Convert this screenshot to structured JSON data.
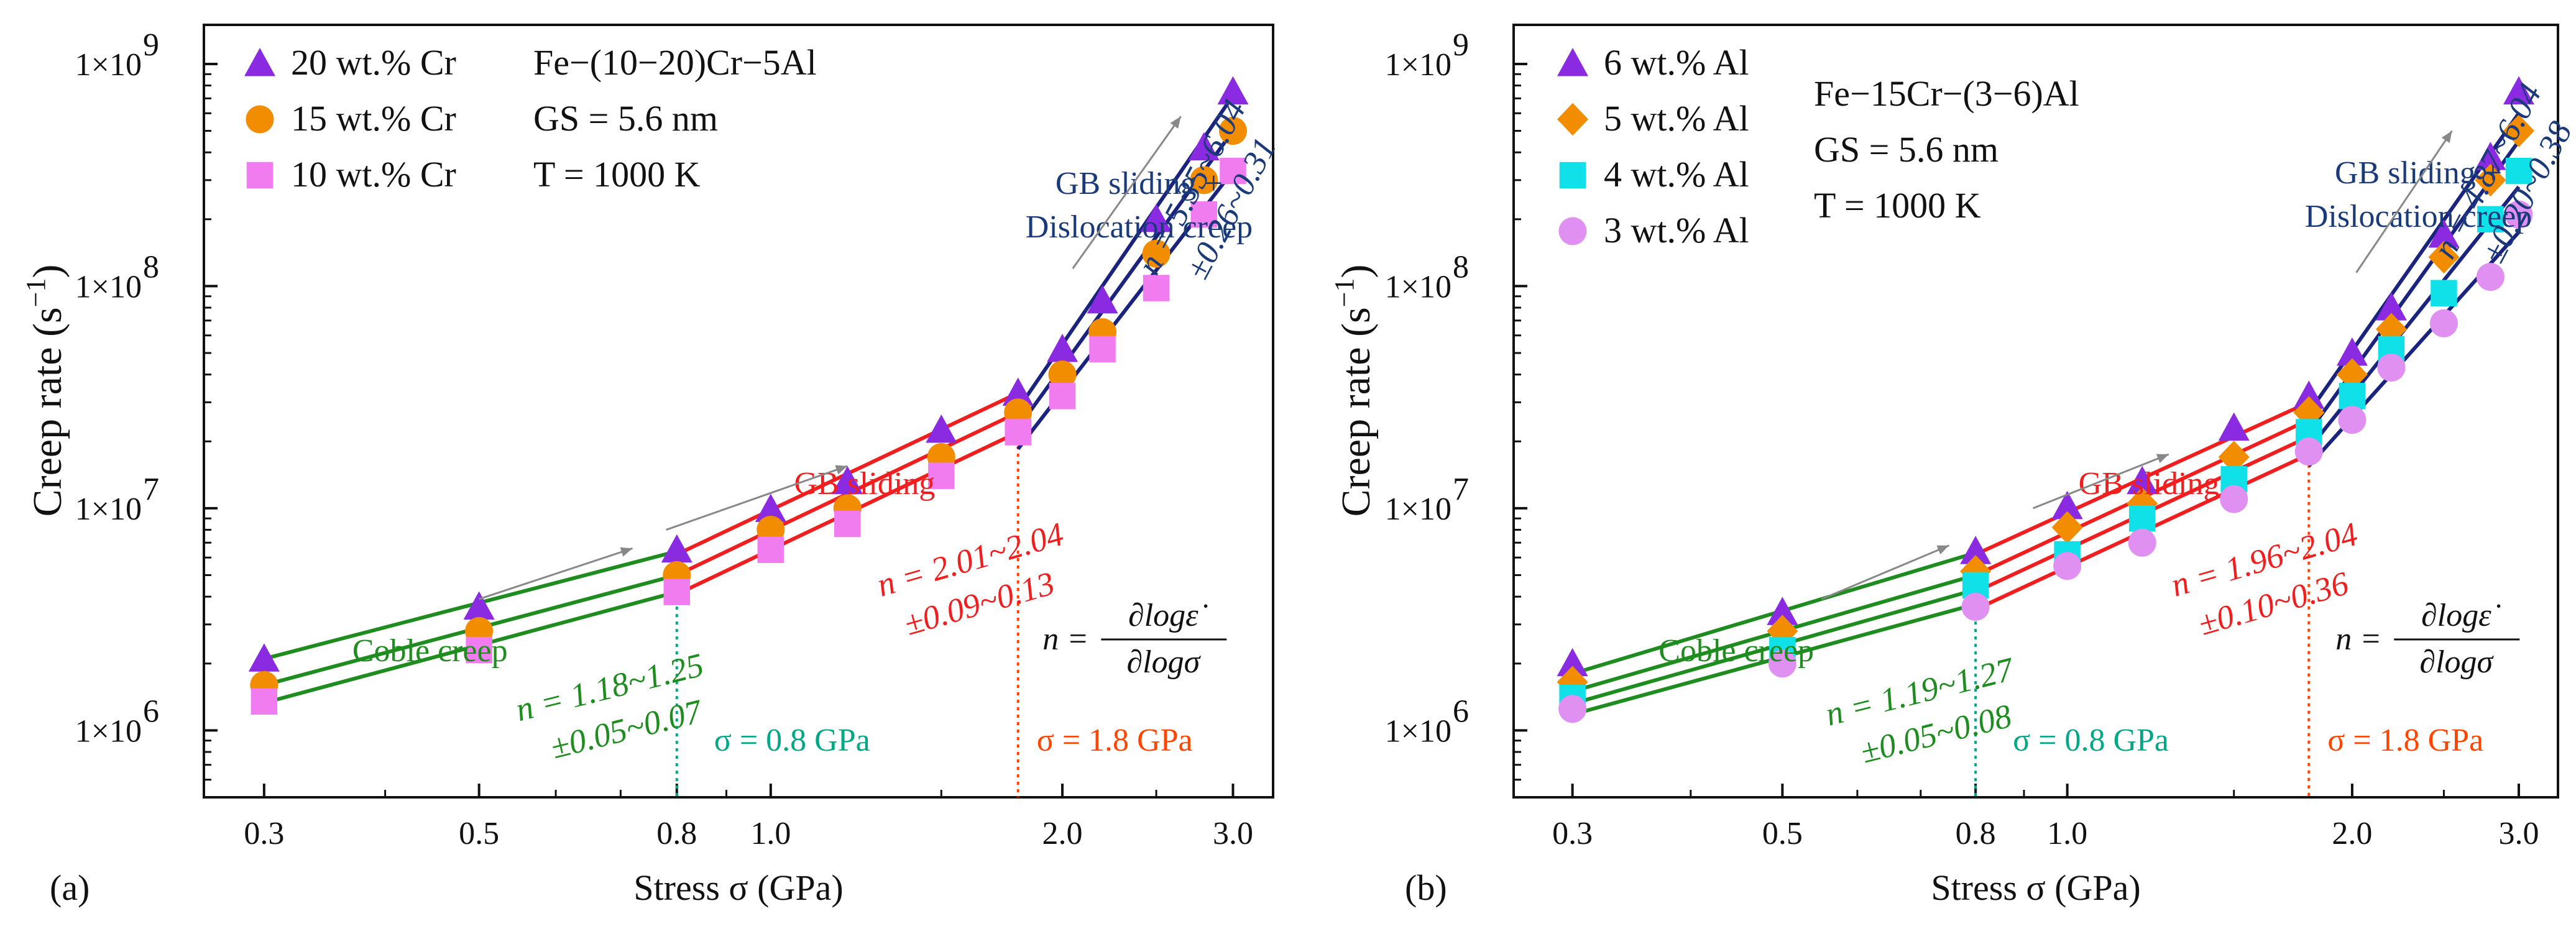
{
  "colors": {
    "green": "#1e8c1e",
    "red": "#f01e1e",
    "navy": "#1a237e",
    "teal": "#00a886",
    "orange_red": "#ff4500",
    "annotation_blue": "#1a3a7a",
    "purple": "#8a2be2",
    "orange": "#f28c00",
    "pink": "#f07cf0",
    "cyan": "#10e0e8",
    "violet": "#e090f0"
  },
  "chart_data": [
    {
      "type": "scatter",
      "panel_label": "(a)",
      "title": "",
      "xlabel": "Stress σ (GPa)",
      "ylabel": "Creep rate (s",
      "ylabel_exp": "−1",
      "ylabel_close": ")",
      "xscale": "log",
      "yscale": "log",
      "xlim": [
        0.26,
        3.3
      ],
      "ylim": [
        500000,
        1500000000
      ],
      "x_ticks": [
        0.3,
        0.5,
        0.8,
        1.0,
        2.0,
        3.0
      ],
      "x_tick_labels": [
        "0.3",
        "0.5",
        "0.8",
        "1.0",
        "2.0",
        "3.0"
      ],
      "y_ticks": [
        1000000,
        10000000,
        100000000,
        1000000000
      ],
      "y_tick_bases": [
        "1×10",
        "1×10",
        "1×10",
        "1×10"
      ],
      "y_tick_exps": [
        "6",
        "7",
        "8",
        "9"
      ],
      "x": [
        0.3,
        0.5,
        0.8,
        1.0,
        1.2,
        1.5,
        1.8,
        2.0,
        2.2,
        2.5,
        2.8,
        3.0
      ],
      "legend_position": "top-left",
      "series": [
        {
          "name": "20 wt.% Cr",
          "marker": "triangle",
          "color": "#8a2be2",
          "values": [
            2100000,
            3600000,
            6500000,
            9900000,
            13200000,
            22500000,
            33000000,
            52000000,
            86000000,
            200000000,
            420000000,
            750000000
          ]
        },
        {
          "name": "15 wt.% Cr",
          "marker": "circle",
          "color": "#f28c00",
          "values": [
            1600000,
            2800000,
            5000000,
            8000000,
            10000000,
            17000000,
            27000000,
            40000000,
            62000000,
            140000000,
            300000000,
            500000000
          ]
        },
        {
          "name": "10 wt.% Cr",
          "marker": "square",
          "color": "#f07cf0",
          "values": [
            1350000,
            2300000,
            4200000,
            6500000,
            8500000,
            14000000,
            22000000,
            32000000,
            52000000,
            98000000,
            210000000,
            330000000
          ]
        }
      ],
      "fits": {
        "coble": {
          "color": "#1e8c1e",
          "x_start": 0.3,
          "x_end": 0.8,
          "start_values": [
            2100000,
            1600000,
            1330000
          ],
          "end_values": [
            6400000,
            5000000,
            4200000
          ]
        },
        "gb": {
          "color": "#f01e1e",
          "x_start": 0.8,
          "x_end": 1.8,
          "start_values": [
            6200000,
            5000000,
            4100000
          ],
          "end_values": [
            33000000,
            27000000,
            22000000
          ]
        },
        "disl": {
          "color": "#1a237e",
          "x_start": 1.8,
          "x_end": 3.0,
          "start_values": [
            28000000,
            23000000,
            18500000
          ],
          "end_values": [
            720000000,
            500000000,
            330000000
          ]
        }
      },
      "info": [
        "Fe−(10−20)Cr−5Al",
        "GS = 5.6 nm",
        "T = 1000 K"
      ],
      "annotations": {
        "coble_label": "Coble creep",
        "gb_label": "GB sliding",
        "disl_label_1": "GB sliding +",
        "disl_label_2": "Dislocation creep",
        "sigma_1": "σ = 0.8 GPa",
        "sigma_2": "σ = 1.8 GPa",
        "n_coble_1": "n = 1.18~1.25",
        "n_coble_2": "±0.05~0.07",
        "n_gb_1": "n = 2.01~2.04",
        "n_gb_2": "±0.09~0.13",
        "n_disl_1": "n = 5.35~6.04",
        "n_disl_2": "±0.26~0.31",
        "formula_lhs": "n =",
        "formula_num": "∂logε̇",
        "formula_den": "∂logσ"
      },
      "vlines": [
        0.8,
        1.8
      ]
    },
    {
      "type": "scatter",
      "panel_label": "(b)",
      "title": "",
      "xlabel": "Stress σ (GPa)",
      "ylabel": "Creep rate (s",
      "ylabel_exp": "−1",
      "ylabel_close": ")",
      "xscale": "log",
      "yscale": "log",
      "xlim": [
        0.26,
        3.3
      ],
      "ylim": [
        500000,
        1500000000
      ],
      "x_ticks": [
        0.3,
        0.5,
        0.8,
        1.0,
        2.0,
        3.0
      ],
      "x_tick_labels": [
        "0.3",
        "0.5",
        "0.8",
        "1.0",
        "2.0",
        "3.0"
      ],
      "y_ticks": [
        1000000,
        10000000,
        100000000,
        1000000000
      ],
      "y_tick_bases": [
        "1×10",
        "1×10",
        "1×10",
        "1×10"
      ],
      "y_tick_exps": [
        "6",
        "7",
        "8",
        "9"
      ],
      "x": [
        0.3,
        0.5,
        0.8,
        1.0,
        1.2,
        1.5,
        1.8,
        2.0,
        2.2,
        2.5,
        2.8,
        3.0
      ],
      "legend_position": "top-left",
      "series": [
        {
          "name": "6 wt.% Al",
          "marker": "triangle",
          "color": "#8a2be2",
          "values": [
            2000000,
            3400000,
            6400000,
            10200000,
            13200000,
            23000000,
            32000000,
            50000000,
            80000000,
            170000000,
            380000000,
            750000000
          ]
        },
        {
          "name": "5 wt.% Al",
          "marker": "diamond",
          "color": "#f28c00",
          "values": [
            1650000,
            2800000,
            5200000,
            8200000,
            10500000,
            17000000,
            27000000,
            40000000,
            64000000,
            135000000,
            300000000,
            500000000
          ]
        },
        {
          "name": "4 wt.% Al",
          "marker": "square",
          "color": "#10e0e8",
          "values": [
            1400000,
            2300000,
            4500000,
            6200000,
            9000000,
            13500000,
            22000000,
            32000000,
            52000000,
            93000000,
            200000000,
            330000000
          ]
        },
        {
          "name": "3 wt.% Al",
          "marker": "circle",
          "color": "#e090f0",
          "values": [
            1250000,
            2000000,
            3600000,
            5500000,
            7000000,
            11000000,
            18000000,
            25000000,
            43000000,
            68000000,
            110000000,
            210000000
          ]
        }
      ],
      "fits": {
        "coble": {
          "color": "#1e8c1e",
          "x_start": 0.3,
          "x_end": 0.8,
          "start_values": [
            1800000,
            1500000,
            1320000,
            1180000
          ],
          "end_values": [
            6300000,
            5000000,
            4300000,
            3700000
          ]
        },
        "gb": {
          "color": "#f01e1e",
          "x_start": 0.8,
          "x_end": 1.8,
          "start_values": [
            6200000,
            5000000,
            4200000,
            3500000
          ],
          "end_values": [
            30000000,
            25000000,
            21000000,
            17500000
          ]
        },
        "disl": {
          "color": "#1a237e",
          "x_start": 1.8,
          "x_end": 3.0,
          "start_values": [
            27000000,
            22000000,
            18500000,
            15500000
          ],
          "end_values": [
            600000000,
            450000000,
            280000000,
            175000000
          ]
        }
      },
      "info": [
        "Fe−15Cr−(3−6)Al",
        "GS = 5.6 nm",
        "T = 1000 K"
      ],
      "annotations": {
        "coble_label": "Coble creep",
        "gb_label": "GB sliding",
        "disl_label_1": "GB sliding +",
        "disl_label_2": "Dislocation creep",
        "sigma_1": "σ = 0.8 GPa",
        "sigma_2": "σ = 1.8 GPa",
        "n_coble_1": "n = 1.19~1.27",
        "n_coble_2": "±0.05~0.08",
        "n_gb_1": "n = 1.96~2.04",
        "n_gb_2": "±0.10~0.36",
        "n_disl_1": "n = 4.87~6.04",
        "n_disl_2": "±0.20~0.38",
        "formula_lhs": "n =",
        "formula_num": "∂logε̇",
        "formula_den": "∂logσ"
      },
      "vlines": [
        0.8,
        1.8
      ]
    }
  ]
}
